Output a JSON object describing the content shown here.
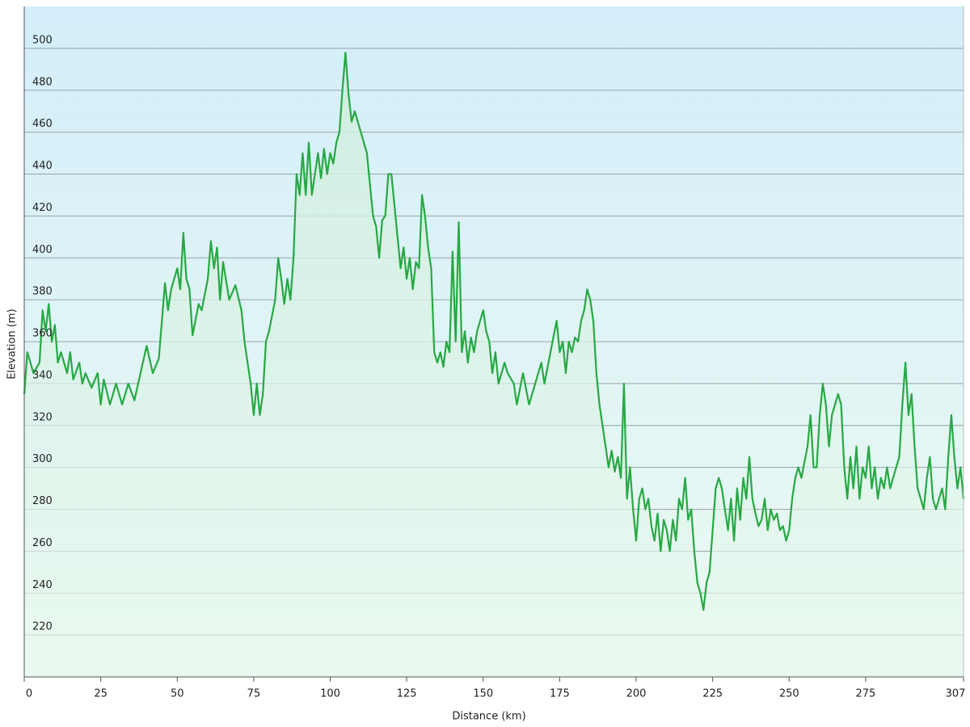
{
  "chart_data": {
    "type": "line",
    "xlabel": "Distance (km)",
    "ylabel": "Elevation (m)",
    "color": "#27a844",
    "xlim": [
      0,
      307
    ],
    "xticks": [
      0,
      25,
      50,
      75,
      100,
      125,
      150,
      175,
      200,
      225,
      250,
      275,
      307
    ],
    "ylim": [
      200,
      520
    ],
    "yticks": [
      220,
      240,
      260,
      280,
      300,
      320,
      340,
      360,
      380,
      400,
      420,
      440,
      460,
      480,
      500
    ],
    "grid": true,
    "x": [
      0,
      1,
      2,
      3,
      5,
      6,
      7,
      8,
      9,
      10,
      11,
      12,
      14,
      15,
      16,
      18,
      19,
      20,
      22,
      24,
      25,
      26,
      28,
      30,
      32,
      34,
      36,
      38,
      40,
      42,
      44,
      45,
      46,
      47,
      48,
      50,
      51,
      52,
      53,
      54,
      55,
      57,
      58,
      60,
      61,
      62,
      63,
      64,
      65,
      67,
      69,
      71,
      72,
      74,
      75,
      76,
      77,
      78,
      79,
      80,
      82,
      83,
      84,
      85,
      86,
      87,
      88,
      89,
      90,
      91,
      92,
      93,
      94,
      95,
      96,
      97,
      98,
      99,
      100,
      101,
      102,
      103,
      104,
      105,
      106,
      107,
      108,
      110,
      112,
      113,
      114,
      115,
      116,
      117,
      118,
      119,
      120,
      121,
      122,
      123,
      124,
      125,
      126,
      127,
      128,
      129,
      130,
      131,
      132,
      133,
      134,
      135,
      136,
      137,
      138,
      139,
      140,
      141,
      142,
      143,
      144,
      145,
      146,
      147,
      148,
      150,
      151,
      152,
      153,
      154,
      155,
      157,
      158,
      160,
      161,
      163,
      165,
      167,
      169,
      170,
      172,
      174,
      175,
      176,
      177,
      178,
      179,
      180,
      181,
      182,
      183,
      184,
      185,
      186,
      187,
      188,
      189,
      190,
      191,
      192,
      193,
      194,
      195,
      196,
      197,
      198,
      199,
      200,
      201,
      202,
      203,
      204,
      205,
      206,
      207,
      208,
      209,
      210,
      211,
      212,
      213,
      214,
      215,
      216,
      217,
      218,
      219,
      220,
      221,
      222,
      223,
      224,
      225,
      226,
      227,
      228,
      229,
      230,
      231,
      232,
      233,
      234,
      235,
      236,
      237,
      238,
      239,
      240,
      241,
      242,
      243,
      244,
      245,
      246,
      247,
      248,
      249,
      250,
      251,
      252,
      253,
      254,
      256,
      257,
      258,
      259,
      260,
      261,
      262,
      263,
      264,
      265,
      266,
      267,
      268,
      269,
      270,
      271,
      272,
      273,
      274,
      275,
      276,
      277,
      278,
      279,
      280,
      281,
      282,
      283,
      284,
      285,
      286,
      287,
      288,
      289,
      290,
      291,
      292,
      293,
      294,
      295,
      296,
      297,
      298,
      299,
      300,
      301,
      302,
      303,
      304,
      305,
      306,
      307
    ],
    "values": [
      335,
      355,
      350,
      345,
      350,
      375,
      365,
      378,
      360,
      368,
      350,
      355,
      345,
      355,
      342,
      350,
      340,
      345,
      338,
      345,
      330,
      342,
      330,
      340,
      330,
      340,
      332,
      345,
      358,
      345,
      352,
      370,
      388,
      375,
      385,
      395,
      385,
      412,
      390,
      385,
      363,
      378,
      375,
      390,
      408,
      395,
      405,
      380,
      398,
      380,
      387,
      375,
      360,
      340,
      325,
      340,
      325,
      335,
      360,
      365,
      380,
      400,
      390,
      378,
      390,
      380,
      400,
      440,
      430,
      450,
      430,
      455,
      430,
      440,
      450,
      438,
      452,
      440,
      450,
      445,
      455,
      460,
      480,
      498,
      478,
      465,
      470,
      460,
      450,
      435,
      420,
      415,
      400,
      418,
      420,
      440,
      440,
      425,
      410,
      395,
      405,
      390,
      400,
      385,
      398,
      395,
      430,
      420,
      405,
      395,
      355,
      350,
      355,
      348,
      360,
      355,
      403,
      360,
      417,
      355,
      365,
      350,
      362,
      355,
      365,
      375,
      365,
      360,
      345,
      355,
      340,
      350,
      345,
      340,
      330,
      345,
      330,
      340,
      350,
      340,
      355,
      370,
      355,
      360,
      345,
      360,
      355,
      362,
      360,
      370,
      375,
      385,
      380,
      370,
      345,
      330,
      320,
      310,
      300,
      308,
      298,
      305,
      295,
      340,
      285,
      300,
      280,
      265,
      285,
      290,
      280,
      285,
      272,
      265,
      278,
      260,
      275,
      270,
      260,
      275,
      265,
      285,
      280,
      295,
      275,
      280,
      260,
      245,
      240,
      232,
      245,
      250,
      270,
      290,
      295,
      290,
      280,
      270,
      285,
      265,
      290,
      275,
      295,
      285,
      305,
      285,
      278,
      272,
      275,
      285,
      270,
      280,
      275,
      278,
      270,
      272,
      265,
      270,
      285,
      295,
      300,
      295,
      310,
      325,
      300,
      300,
      325,
      340,
      330,
      310,
      325,
      330,
      335,
      330,
      300,
      285,
      305,
      290,
      310,
      285,
      300,
      295,
      310,
      290,
      300,
      285,
      295,
      290,
      300,
      290,
      295,
      300,
      305,
      330,
      350,
      325,
      335,
      310,
      290,
      285,
      280,
      295,
      305,
      285,
      280,
      285,
      290,
      280,
      305,
      325,
      305,
      290,
      300,
      285
    ]
  }
}
